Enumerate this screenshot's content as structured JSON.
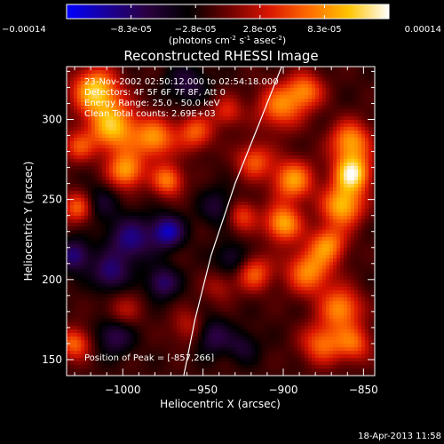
{
  "colorbar": {
    "tick_labels": [
      "-0.00014",
      "-8.3e-05",
      "-2.8e-05",
      "2.8e-05",
      "8.3e-05",
      "0.00014"
    ],
    "units_label": "(photons cm",
    "units_exp1": "-2",
    "units_mid": " s",
    "units_exp2": "-1",
    "units_end": " asec",
    "units_exp3": "-2",
    "units_close": ")",
    "range": [
      -0.00014,
      0.00014
    ]
  },
  "chart_data": {
    "type": "heatmap",
    "title": "Reconstructed RHESSI Image",
    "xlabel": "Heliocentric X (arcsec)",
    "ylabel": "Heliocentric Y (arcsec)",
    "xlim": [
      -1035,
      -843
    ],
    "ylim": [
      140,
      333
    ],
    "x_ticks": [
      -1000,
      -950,
      -900,
      -850
    ],
    "x_tick_labels": [
      "−1000",
      "−950",
      "−900",
      "−850"
    ],
    "y_ticks": [
      150,
      200,
      250,
      300
    ],
    "y_tick_labels": [
      "150",
      "200",
      "250",
      "300"
    ],
    "annotations": [
      "23-Nov-2002 02:50:12.000 to 02:54:18.000",
      "Detectors: 4F 5F 6F 7F 8F, Att 0",
      "Energy Range: 25.0 - 50.0 keV",
      "Clean     Total counts: 2.69E+03"
    ],
    "peak_label": "Position of Peak = [-857,266]",
    "peak": [
      -857,
      266
    ],
    "colormap": [
      "#0000ff",
      "#1a0099",
      "#2a0040",
      "#000000",
      "#6a0000",
      "#d81400",
      "#ff6a00",
      "#ffc400",
      "#ffffff"
    ],
    "blobs": [
      {
        "x": -857,
        "y": 266,
        "v": 1.0,
        "s": 8
      },
      {
        "x": -858,
        "y": 286,
        "v": 0.75,
        "s": 9
      },
      {
        "x": -863,
        "y": 246,
        "v": 0.85,
        "s": 9
      },
      {
        "x": -872,
        "y": 222,
        "v": 0.65,
        "s": 8
      },
      {
        "x": -864,
        "y": 182,
        "v": 0.7,
        "s": 9
      },
      {
        "x": -876,
        "y": 160,
        "v": 0.6,
        "s": 9
      },
      {
        "x": -856,
        "y": 160,
        "v": 0.55,
        "s": 8
      },
      {
        "x": -894,
        "y": 262,
        "v": 0.75,
        "s": 9
      },
      {
        "x": -900,
        "y": 235,
        "v": 0.8,
        "s": 8
      },
      {
        "x": -884,
        "y": 205,
        "v": 0.7,
        "s": 10
      },
      {
        "x": -902,
        "y": 308,
        "v": 0.65,
        "s": 10
      },
      {
        "x": -886,
        "y": 318,
        "v": 0.6,
        "s": 8
      },
      {
        "x": -918,
        "y": 274,
        "v": 0.55,
        "s": 8
      },
      {
        "x": -926,
        "y": 240,
        "v": 0.5,
        "s": 7
      },
      {
        "x": -918,
        "y": 204,
        "v": 0.55,
        "s": 8
      },
      {
        "x": -935,
        "y": 305,
        "v": 0.4,
        "s": 7
      },
      {
        "x": -955,
        "y": 292,
        "v": 0.55,
        "s": 8
      },
      {
        "x": -972,
        "y": 262,
        "v": 0.65,
        "s": 7
      },
      {
        "x": -980,
        "y": 288,
        "v": 0.7,
        "s": 9
      },
      {
        "x": -998,
        "y": 268,
        "v": 0.75,
        "s": 8
      },
      {
        "x": -1006,
        "y": 295,
        "v": 0.85,
        "s": 11
      },
      {
        "x": -1017,
        "y": 318,
        "v": 0.9,
        "s": 10
      },
      {
        "x": -1028,
        "y": 283,
        "v": 0.45,
        "s": 7
      },
      {
        "x": -1028,
        "y": 245,
        "v": 0.6,
        "s": 7
      },
      {
        "x": -1030,
        "y": 160,
        "v": 0.6,
        "s": 7
      },
      {
        "x": -1000,
        "y": 180,
        "v": 0.3,
        "s": 8
      },
      {
        "x": -958,
        "y": 170,
        "v": 0.35,
        "s": 8
      },
      {
        "x": -940,
        "y": 195,
        "v": 0.25,
        "s": 7
      },
      {
        "x": -995,
        "y": 225,
        "v": -0.55,
        "s": 10
      },
      {
        "x": -972,
        "y": 230,
        "v": -0.7,
        "s": 7
      },
      {
        "x": -1030,
        "y": 215,
        "v": -0.55,
        "s": 7
      },
      {
        "x": -1008,
        "y": 204,
        "v": -0.5,
        "s": 8
      },
      {
        "x": -975,
        "y": 198,
        "v": -0.5,
        "s": 7
      },
      {
        "x": -1005,
        "y": 165,
        "v": -0.45,
        "s": 8
      },
      {
        "x": -940,
        "y": 245,
        "v": -0.35,
        "s": 8
      },
      {
        "x": -945,
        "y": 165,
        "v": -0.45,
        "s": 8
      },
      {
        "x": -932,
        "y": 213,
        "v": -0.35,
        "s": 7
      },
      {
        "x": -960,
        "y": 322,
        "v": -0.35,
        "s": 9
      },
      {
        "x": -925,
        "y": 158,
        "v": -0.3,
        "s": 7
      },
      {
        "x": -1015,
        "y": 248,
        "v": -0.3,
        "s": 8
      }
    ]
  },
  "limb": {
    "points": [
      [
        -962,
        140
      ],
      [
        -955,
        175
      ],
      [
        -945,
        215
      ],
      [
        -930,
        260
      ],
      [
        -916,
        295
      ],
      [
        -901,
        333
      ]
    ]
  },
  "footer": {
    "timestamp": "18-Apr-2013 11:58"
  },
  "colors": {
    "background": "#000000",
    "text": "#ffffff",
    "limb": "#ffffff"
  }
}
